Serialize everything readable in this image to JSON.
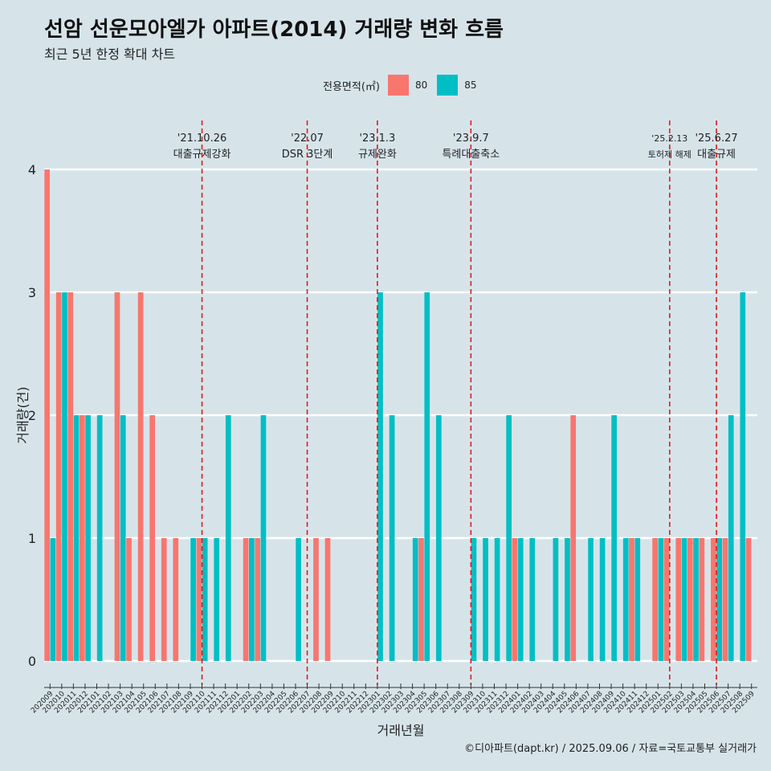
{
  "title": "선암 선운모아엘가 아파트(2014) 거래량 변화 흐름",
  "subtitle": "최근 5년 한정 확대 차트",
  "legend_title": "전용면적(㎡)",
  "caption": "©디아파트(dapt.kr) / 2025.09.06 / 자료=국토교통부 실거래가",
  "colors": {
    "80": "#f8766d",
    "85": "#00bfc4",
    "event_line": "#e41a1c",
    "background": "#d6e4ea"
  },
  "chart_data": {
    "type": "bar",
    "xlabel": "거래년월",
    "ylabel": "거래량(건)",
    "ylim": [
      0,
      4
    ],
    "yticks": [
      0,
      1,
      2,
      3,
      4
    ],
    "grid": true,
    "legend_position": "top",
    "categories": [
      "202009",
      "202010",
      "202011",
      "202012",
      "202101",
      "202102",
      "202103",
      "202104",
      "202105",
      "202106",
      "202107",
      "202108",
      "202109",
      "202110",
      "202111",
      "202112",
      "202201",
      "202202",
      "202203",
      "202204",
      "202205",
      "202206",
      "202207",
      "202208",
      "202209",
      "202210",
      "202211",
      "202212",
      "202301",
      "202302",
      "202303",
      "202304",
      "202305",
      "202306",
      "202307",
      "202308",
      "202309",
      "202310",
      "202311",
      "202312",
      "202401",
      "202402",
      "202403",
      "202404",
      "202405",
      "202406",
      "202407",
      "202408",
      "202409",
      "202410",
      "202411",
      "202412",
      "202501",
      "202502",
      "202503",
      "202504",
      "202505",
      "202506",
      "202507",
      "202508",
      "202509"
    ],
    "series": [
      {
        "name": "80",
        "values": [
          4,
          3,
          3,
          2,
          0,
          0,
          3,
          1,
          3,
          2,
          1,
          1,
          0,
          1,
          0,
          0,
          0,
          1,
          1,
          0,
          0,
          0,
          0,
          1,
          1,
          0,
          0,
          0,
          0,
          0,
          0,
          0,
          1,
          0,
          0,
          0,
          0,
          0,
          0,
          0,
          1,
          0,
          0,
          0,
          0,
          2,
          0,
          0,
          0,
          0,
          1,
          0,
          1,
          1,
          1,
          1,
          1,
          1,
          1,
          0,
          1
        ]
      },
      {
        "name": "85",
        "values": [
          1,
          3,
          2,
          2,
          2,
          0,
          2,
          0,
          0,
          0,
          0,
          0,
          1,
          1,
          1,
          2,
          0,
          1,
          2,
          0,
          0,
          1,
          0,
          0,
          0,
          0,
          0,
          0,
          3,
          2,
          0,
          1,
          3,
          2,
          0,
          0,
          1,
          1,
          1,
          2,
          1,
          1,
          0,
          1,
          1,
          0,
          1,
          1,
          2,
          1,
          1,
          0,
          1,
          0,
          1,
          1,
          0,
          1,
          2,
          3,
          0
        ]
      }
    ],
    "events": [
      {
        "category": "202110",
        "date": "'21.10.26",
        "label": "대출규제강화"
      },
      {
        "category": "202207",
        "date": "'22.07",
        "label": "DSR 3단계"
      },
      {
        "category": "202301",
        "date": "'23.1.3",
        "label": "규제완화"
      },
      {
        "category": "202309",
        "date": "'23.9.7",
        "label": "특례대출축소"
      },
      {
        "category": "202502",
        "date": "'25.2.13",
        "label": "토허제 해제"
      },
      {
        "category": "202506",
        "date": "'25.6.27",
        "label": "대출규제"
      }
    ]
  }
}
